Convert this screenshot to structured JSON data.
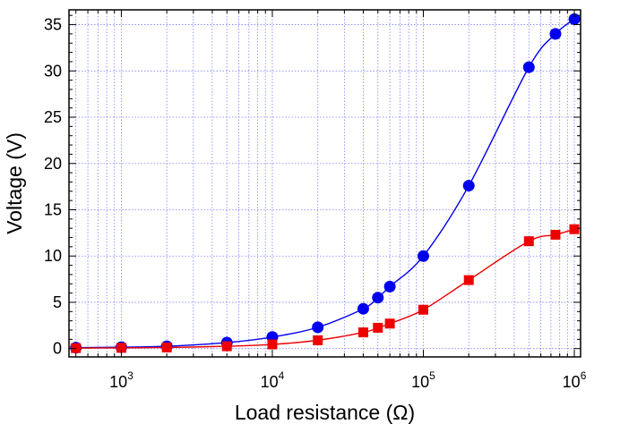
{
  "chart_data": {
    "type": "line",
    "x_scale": "log",
    "grid": true,
    "grid_color": "#8080ff",
    "xlabel": "Load resistance (Ω)",
    "ylabel": "Voltage (V)",
    "xlim": [
      450,
      1100000
    ],
    "ylim": [
      -0.9,
      36.6
    ],
    "x_tick_labels": [
      {
        "base": "10",
        "exp": "3"
      },
      {
        "base": "10",
        "exp": "4"
      },
      {
        "base": "10",
        "exp": "5"
      },
      {
        "base": "10",
        "exp": "6"
      }
    ],
    "y_ticks": [
      0,
      5,
      10,
      15,
      20,
      25,
      30,
      35
    ],
    "y_tick_labels": [
      "0",
      "5",
      "10",
      "15",
      "20",
      "25",
      "30",
      "35"
    ],
    "series": [
      {
        "marker": "circle",
        "color": "#0000ee",
        "x": [
          500,
          1000,
          2000,
          5000,
          10000,
          20000,
          40000,
          50000,
          60000,
          100000,
          200000,
          500000,
          750000,
          1000000
        ],
        "y": [
          0.1,
          0.15,
          0.25,
          0.65,
          1.25,
          2.3,
          4.3,
          5.5,
          6.7,
          10.0,
          17.6,
          30.4,
          34.0,
          35.6
        ]
      },
      {
        "marker": "square",
        "color": "#ee0000",
        "x": [
          500,
          1000,
          2000,
          5000,
          10000,
          20000,
          40000,
          50000,
          60000,
          100000,
          200000,
          500000,
          750000,
          1000000
        ],
        "y": [
          0.05,
          0.08,
          0.12,
          0.25,
          0.45,
          0.9,
          1.75,
          2.25,
          2.7,
          4.2,
          7.4,
          11.6,
          12.3,
          12.9
        ]
      }
    ]
  }
}
